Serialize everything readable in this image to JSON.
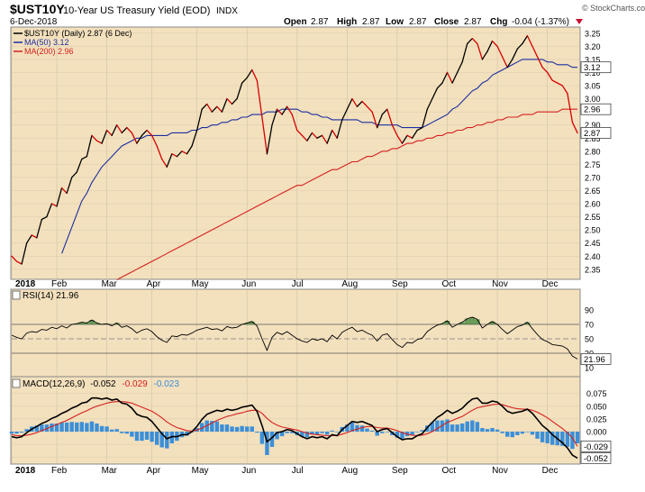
{
  "header": {
    "symbol": "$UST10Y",
    "title": "10-Year US Treasury Yield (EOD)",
    "exchange": "INDX",
    "date": "6-Dec-2018",
    "brand": "© StockCharts.com",
    "open_label": "Open",
    "open": "2.87",
    "high_label": "High",
    "high": "2.87",
    "low_label": "Low",
    "low": "2.87",
    "close_label": "Close",
    "close": "2.87",
    "chg_label": "Chg",
    "chg": "-0.04 (-1.37%)"
  },
  "legend": {
    "price": "$UST10Y (Daily) 2.87 (6 Dec)",
    "ma50": "MA(50) 3.12",
    "ma200": "MA(200) 2.96"
  },
  "rsi_label": "RSI(14) 21.96",
  "macd_label": {
    "name": "MACD(12,26,9)",
    "v1": "-0.052",
    "v2": "-0.029",
    "v3": "-0.023"
  },
  "colors": {
    "panel_bg": "#f3e0bd",
    "price": "#000000",
    "price_down": "#d40000",
    "ma50": "#1a2ea0",
    "ma200": "#d42020",
    "rsi_fill": "#2f7d2f",
    "histogram": "#3b8fd8",
    "macd_signal": "#d42020",
    "flag": "#c8102e"
  },
  "chart_data": [
    {
      "type": "line",
      "panel": "price",
      "xlabel": "",
      "ylabel": "",
      "x_axis_labels": [
        "2018",
        "Feb",
        "Mar",
        "Apr",
        "May",
        "Jun",
        "Jul",
        "Aug",
        "Sep",
        "Oct",
        "Nov",
        "Dec"
      ],
      "y_ticks": [
        "2.35",
        "2.40",
        "2.45",
        "2.50",
        "2.55",
        "2.60",
        "2.65",
        "2.70",
        "2.75",
        "2.80",
        "2.85",
        "2.90",
        "2.95",
        "3.00",
        "3.05",
        "3.10",
        "3.15",
        "3.20",
        "3.25"
      ],
      "ylim": [
        2.315,
        3.27
      ],
      "grid": true,
      "value_tags": [
        "3.12",
        "2.96",
        "2.87"
      ],
      "series": [
        {
          "name": "$UST10Y (Daily) 2.87 (6 Dec)",
          "style": "price",
          "values": [
            2.4,
            2.38,
            2.37,
            2.45,
            2.48,
            2.47,
            2.54,
            2.55,
            2.6,
            2.59,
            2.66,
            2.64,
            2.7,
            2.72,
            2.77,
            2.78,
            2.86,
            2.84,
            2.83,
            2.88,
            2.86,
            2.9,
            2.87,
            2.89,
            2.87,
            2.83,
            2.86,
            2.88,
            2.86,
            2.82,
            2.77,
            2.74,
            2.79,
            2.78,
            2.8,
            2.79,
            2.82,
            2.88,
            2.96,
            2.98,
            2.95,
            2.97,
            2.95,
            3.0,
            2.98,
            3.0,
            3.06,
            3.08,
            3.11,
            3.07,
            2.93,
            2.79,
            2.9,
            2.96,
            2.94,
            2.97,
            2.94,
            2.88,
            2.86,
            2.84,
            2.87,
            2.85,
            2.86,
            2.83,
            2.88,
            2.85,
            2.92,
            2.96,
            3.0,
            2.97,
            2.99,
            2.97,
            2.95,
            2.89,
            2.94,
            2.96,
            2.9,
            2.86,
            2.83,
            2.86,
            2.85,
            2.88,
            2.89,
            2.96,
            3.0,
            3.04,
            3.06,
            3.1,
            3.06,
            3.1,
            3.14,
            3.21,
            3.23,
            3.21,
            3.15,
            3.18,
            3.22,
            3.2,
            3.16,
            3.12,
            3.15,
            3.19,
            3.21,
            3.24,
            3.2,
            3.16,
            3.12,
            3.1,
            3.07,
            3.06,
            3.05,
            3.02,
            2.91,
            2.87
          ]
        },
        {
          "name": "MA(50) 3.12",
          "style": "ma50",
          "values": [
            null,
            null,
            null,
            null,
            null,
            null,
            null,
            null,
            null,
            null,
            2.41,
            2.46,
            2.51,
            2.56,
            2.61,
            2.64,
            2.68,
            2.71,
            2.74,
            2.76,
            2.78,
            2.8,
            2.82,
            2.83,
            2.84,
            2.85,
            2.85,
            2.86,
            2.86,
            2.86,
            2.86,
            2.86,
            2.87,
            2.87,
            2.87,
            2.87,
            2.88,
            2.88,
            2.89,
            2.89,
            2.9,
            2.9,
            2.91,
            2.91,
            2.92,
            2.92,
            2.93,
            2.93,
            2.94,
            2.94,
            2.94,
            2.95,
            2.95,
            2.95,
            2.96,
            2.96,
            2.96,
            2.96,
            2.95,
            2.95,
            2.94,
            2.94,
            2.93,
            2.93,
            2.92,
            2.92,
            2.92,
            2.92,
            2.92,
            2.92,
            2.91,
            2.91,
            2.91,
            2.9,
            2.9,
            2.9,
            2.9,
            2.9,
            2.89,
            2.89,
            2.89,
            2.89,
            2.89,
            2.9,
            2.91,
            2.92,
            2.93,
            2.94,
            2.96,
            2.97,
            2.99,
            3.01,
            3.03,
            3.04,
            3.06,
            3.07,
            3.09,
            3.1,
            3.11,
            3.12,
            3.13,
            3.14,
            3.15,
            3.15,
            3.15,
            3.15,
            3.15,
            3.14,
            3.14,
            3.13,
            3.13,
            3.13,
            3.12,
            3.12
          ]
        },
        {
          "name": "MA(200) 2.96",
          "style": "ma200",
          "values": [
            null,
            null,
            null,
            null,
            null,
            null,
            null,
            null,
            null,
            null,
            null,
            null,
            null,
            null,
            null,
            null,
            null,
            null,
            null,
            null,
            null,
            2.31,
            2.32,
            2.33,
            2.34,
            2.35,
            2.36,
            2.37,
            2.38,
            2.39,
            2.4,
            2.41,
            2.42,
            2.43,
            2.44,
            2.45,
            2.46,
            2.47,
            2.48,
            2.49,
            2.5,
            2.51,
            2.52,
            2.53,
            2.54,
            2.55,
            2.56,
            2.57,
            2.58,
            2.59,
            2.6,
            2.61,
            2.62,
            2.63,
            2.64,
            2.65,
            2.66,
            2.67,
            2.67,
            2.68,
            2.69,
            2.7,
            2.71,
            2.72,
            2.73,
            2.73,
            2.74,
            2.75,
            2.76,
            2.76,
            2.77,
            2.78,
            2.78,
            2.79,
            2.8,
            2.8,
            2.81,
            2.81,
            2.82,
            2.83,
            2.83,
            2.84,
            2.84,
            2.85,
            2.85,
            2.86,
            2.86,
            2.87,
            2.87,
            2.88,
            2.88,
            2.89,
            2.89,
            2.9,
            2.9,
            2.91,
            2.91,
            2.92,
            2.92,
            2.93,
            2.93,
            2.93,
            2.94,
            2.94,
            2.94,
            2.95,
            2.95,
            2.95,
            2.95,
            2.95,
            2.96,
            2.96,
            2.96,
            2.96
          ]
        }
      ]
    },
    {
      "type": "line",
      "panel": "rsi",
      "title": "RSI(14) 21.96",
      "y_ticks": [
        "10",
        "30",
        "50",
        "70",
        "90"
      ],
      "ylim": [
        0,
        100
      ],
      "reference_lines": [
        30,
        50,
        70
      ],
      "value_tag": "21.96",
      "series": [
        {
          "name": "RSI(14) 21.96",
          "values": [
            55,
            52,
            50,
            58,
            60,
            59,
            63,
            62,
            66,
            64,
            68,
            65,
            70,
            71,
            73,
            72,
            76,
            72,
            70,
            71,
            68,
            72,
            66,
            68,
            64,
            58,
            62,
            64,
            60,
            53,
            48,
            45,
            54,
            53,
            56,
            55,
            58,
            62,
            64,
            66,
            63,
            64,
            61,
            67,
            65,
            66,
            70,
            72,
            74,
            68,
            50,
            34,
            52,
            59,
            56,
            60,
            55,
            50,
            47,
            45,
            50,
            48,
            50,
            46,
            55,
            50,
            59,
            63,
            66,
            60,
            62,
            58,
            55,
            47,
            55,
            57,
            49,
            42,
            38,
            45,
            44,
            49,
            51,
            60,
            65,
            69,
            71,
            75,
            66,
            70,
            73,
            78,
            80,
            77,
            65,
            70,
            74,
            70,
            63,
            57,
            62,
            67,
            69,
            73,
            64,
            56,
            49,
            46,
            42,
            41,
            40,
            36,
            26,
            22
          ]
        }
      ]
    },
    {
      "type": "line",
      "panel": "macd",
      "title": "MACD(12,26,9) -0.052, -0.029, -0.023",
      "y_ticks": [
        "0.075",
        "0.050",
        "0.025",
        "0.000",
        "-0.025",
        "-0.050"
      ],
      "ylim": [
        -0.062,
        0.085
      ],
      "value_tags": [
        "-0.029",
        "-0.052"
      ],
      "series": [
        {
          "name": "MACD(12,26,9) -0.052",
          "style": "macd",
          "values": [
            -0.01,
            -0.012,
            -0.01,
            -0.002,
            0.005,
            0.01,
            0.016,
            0.02,
            0.026,
            0.03,
            0.036,
            0.04,
            0.046,
            0.05,
            0.056,
            0.058,
            0.066,
            0.066,
            0.064,
            0.066,
            0.062,
            0.064,
            0.056,
            0.054,
            0.046,
            0.034,
            0.03,
            0.028,
            0.02,
            0.008,
            -0.004,
            -0.014,
            -0.01,
            -0.01,
            -0.006,
            -0.006,
            0.0,
            0.01,
            0.024,
            0.034,
            0.038,
            0.042,
            0.04,
            0.044,
            0.042,
            0.044,
            0.048,
            0.05,
            0.052,
            0.04,
            0.012,
            -0.02,
            -0.012,
            -0.002,
            0.0,
            0.004,
            0.002,
            -0.004,
            -0.01,
            -0.014,
            -0.01,
            -0.012,
            -0.01,
            -0.014,
            -0.006,
            -0.008,
            0.004,
            0.012,
            0.02,
            0.018,
            0.02,
            0.016,
            0.012,
            0.0,
            0.004,
            0.006,
            -0.002,
            -0.01,
            -0.016,
            -0.014,
            -0.014,
            -0.008,
            -0.004,
            0.008,
            0.018,
            0.028,
            0.034,
            0.042,
            0.036,
            0.04,
            0.046,
            0.056,
            0.064,
            0.066,
            0.056,
            0.056,
            0.06,
            0.058,
            0.05,
            0.04,
            0.036,
            0.038,
            0.04,
            0.044,
            0.036,
            0.024,
            0.012,
            0.004,
            -0.006,
            -0.014,
            -0.022,
            -0.032,
            -0.046,
            -0.052
          ]
        },
        {
          "name": "-0.029",
          "style": "signal",
          "values": [
            -0.006,
            -0.008,
            -0.008,
            -0.007,
            -0.005,
            -0.002,
            0.002,
            0.006,
            0.01,
            0.014,
            0.018,
            0.022,
            0.027,
            0.032,
            0.037,
            0.041,
            0.046,
            0.05,
            0.053,
            0.056,
            0.058,
            0.059,
            0.059,
            0.058,
            0.056,
            0.052,
            0.048,
            0.044,
            0.04,
            0.034,
            0.027,
            0.019,
            0.013,
            0.008,
            0.005,
            0.002,
            0.001,
            0.003,
            0.007,
            0.012,
            0.017,
            0.022,
            0.026,
            0.03,
            0.032,
            0.035,
            0.037,
            0.04,
            0.042,
            0.042,
            0.036,
            0.026,
            0.018,
            0.013,
            0.009,
            0.007,
            0.005,
            0.003,
            0.0,
            -0.003,
            -0.005,
            -0.006,
            -0.007,
            -0.008,
            -0.008,
            -0.008,
            -0.005,
            -0.002,
            0.002,
            0.005,
            0.008,
            0.01,
            0.01,
            0.008,
            0.007,
            0.007,
            0.005,
            0.002,
            -0.002,
            -0.005,
            -0.007,
            -0.008,
            -0.007,
            -0.004,
            0.0,
            0.006,
            0.012,
            0.018,
            0.022,
            0.026,
            0.03,
            0.036,
            0.042,
            0.047,
            0.049,
            0.051,
            0.053,
            0.054,
            0.053,
            0.05,
            0.047,
            0.045,
            0.044,
            0.044,
            0.042,
            0.038,
            0.033,
            0.027,
            0.02,
            0.013,
            0.006,
            -0.002,
            -0.012,
            -0.029
          ]
        }
      ]
    }
  ]
}
